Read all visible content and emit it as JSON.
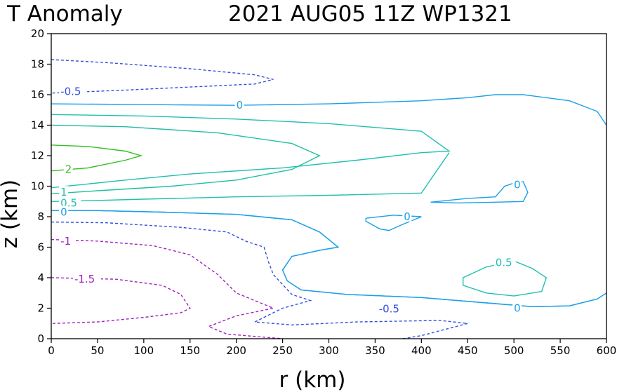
{
  "chart_data": {
    "type": "contour",
    "title_left": "T Anomaly",
    "title_right": "2021 AUG05 11Z   WP1321",
    "xlabel": "r (km)",
    "ylabel": "z (km)",
    "xlim": [
      0,
      600
    ],
    "ylim": [
      0,
      20
    ],
    "xticks": [
      0,
      50,
      100,
      150,
      200,
      250,
      300,
      350,
      400,
      450,
      500,
      550,
      600
    ],
    "yticks": [
      0,
      2,
      4,
      6,
      8,
      10,
      12,
      14,
      16,
      18,
      20
    ],
    "colors": {
      "-1.5": "#a020c0",
      "-1": "#a020c0",
      "-0.5": "#3050e0",
      "0": "#1aa0e8",
      "0.5": "#20c0b0",
      "1": "#20c0a0",
      "2": "#30c020"
    },
    "contours": [
      {
        "level": -0.5,
        "dashed": true,
        "points": [
          [
            0,
            18.3
          ],
          [
            60,
            18.1
          ],
          [
            150,
            17.7
          ],
          [
            220,
            17.3
          ],
          [
            240,
            17.0
          ],
          [
            220,
            16.7
          ],
          [
            150,
            16.5
          ],
          [
            80,
            16.3
          ],
          [
            0,
            16.1
          ]
        ]
      },
      {
        "level": 0,
        "dashed": false,
        "points": [
          [
            0,
            15.4
          ],
          [
            100,
            15.35
          ],
          [
            200,
            15.3
          ],
          [
            300,
            15.4
          ],
          [
            400,
            15.6
          ],
          [
            450,
            15.8
          ],
          [
            480,
            16.0
          ],
          [
            510,
            16.0
          ],
          [
            560,
            15.6
          ],
          [
            590,
            14.9
          ],
          [
            600,
            14.0
          ]
        ]
      },
      {
        "level": 0.5,
        "dashed": false,
        "points": [
          [
            0,
            14.7
          ],
          [
            100,
            14.6
          ],
          [
            200,
            14.4
          ],
          [
            300,
            14.1
          ],
          [
            400,
            13.6
          ],
          [
            430,
            12.3
          ],
          [
            400,
            12.2
          ],
          [
            330,
            11.7
          ],
          [
            250,
            11.2
          ],
          [
            150,
            10.8
          ],
          [
            80,
            10.4
          ],
          [
            0,
            9.9
          ]
        ]
      },
      {
        "level": 1,
        "dashed": false,
        "points": [
          [
            0,
            14.0
          ],
          [
            80,
            13.9
          ],
          [
            180,
            13.5
          ],
          [
            260,
            12.8
          ],
          [
            290,
            12.0
          ],
          [
            260,
            11.1
          ],
          [
            200,
            10.4
          ],
          [
            130,
            10.0
          ],
          [
            50,
            9.7
          ],
          [
            0,
            9.5
          ]
        ]
      },
      {
        "level": 2,
        "dashed": false,
        "points": [
          [
            0,
            12.7
          ],
          [
            40,
            12.6
          ],
          [
            80,
            12.3
          ],
          [
            97,
            12.0
          ],
          [
            80,
            11.7
          ],
          [
            40,
            11.2
          ],
          [
            0,
            11.0
          ]
        ]
      },
      {
        "level": 0.5,
        "dashed": false,
        "points": [
          [
            0,
            9.0
          ],
          [
            40,
            9.05
          ],
          [
            100,
            9.15
          ],
          [
            200,
            9.3
          ],
          [
            300,
            9.4
          ],
          [
            400,
            9.55
          ],
          [
            430,
            12.2
          ]
        ]
      },
      {
        "level": 0,
        "dashed": false,
        "points": [
          [
            0,
            8.4
          ],
          [
            50,
            8.4
          ],
          [
            120,
            8.3
          ],
          [
            200,
            8.15
          ],
          [
            260,
            7.8
          ],
          [
            290,
            7.0
          ],
          [
            310,
            6.0
          ],
          [
            290,
            5.8
          ],
          [
            260,
            5.4
          ],
          [
            250,
            4.5
          ],
          [
            255,
            3.8
          ],
          [
            270,
            3.2
          ],
          [
            320,
            2.9
          ],
          [
            400,
            2.7
          ],
          [
            480,
            2.3
          ],
          [
            520,
            2.1
          ],
          [
            560,
            2.15
          ],
          [
            590,
            2.6
          ],
          [
            600,
            3.0
          ]
        ]
      },
      {
        "level": 0,
        "dashed": false,
        "points": [
          [
            0,
            8.4
          ],
          [
            50,
            8.4
          ],
          [
            120,
            8.3
          ],
          [
            200,
            8.15
          ],
          [
            260,
            7.8
          ],
          [
            290,
            7.0
          ],
          [
            310,
            6.0
          ],
          [
            290,
            5.8
          ],
          [
            260,
            5.4
          ],
          [
            250,
            4.5
          ],
          [
            255,
            3.8
          ],
          [
            270,
            3.2
          ],
          [
            320,
            2.9
          ],
          [
            400,
            2.7
          ],
          [
            480,
            2.3
          ],
          [
            520,
            2.1
          ],
          [
            560,
            2.15
          ],
          [
            590,
            2.6
          ],
          [
            600,
            3.0
          ]
        ]
      },
      {
        "level": 0,
        "dashed": false,
        "points": [
          [
            340,
            7.9
          ],
          [
            370,
            8.1
          ],
          [
            400,
            8.0
          ],
          [
            380,
            7.5
          ],
          [
            365,
            7.1
          ],
          [
            355,
            7.2
          ],
          [
            340,
            7.7
          ],
          [
            340,
            7.9
          ]
        ]
      },
      {
        "level": 0,
        "dashed": false,
        "points": [
          [
            410,
            8.95
          ],
          [
            450,
            9.2
          ],
          [
            480,
            9.3
          ],
          [
            490,
            10.0
          ],
          [
            500,
            10.2
          ],
          [
            510,
            10.3
          ],
          [
            515,
            9.6
          ],
          [
            510,
            9.0
          ],
          [
            480,
            8.95
          ],
          [
            440,
            8.9
          ],
          [
            410,
            8.95
          ]
        ]
      },
      {
        "level": 0.5,
        "dashed": false,
        "points": [
          [
            470,
            4.7
          ],
          [
            500,
            5.1
          ],
          [
            520,
            4.6
          ],
          [
            535,
            4.0
          ],
          [
            530,
            3.1
          ],
          [
            500,
            2.8
          ],
          [
            470,
            3.0
          ],
          [
            445,
            3.5
          ],
          [
            445,
            4.0
          ],
          [
            470,
            4.7
          ]
        ]
      },
      {
        "level": -0.5,
        "dashed": true,
        "points": [
          [
            0,
            7.65
          ],
          [
            60,
            7.6
          ],
          [
            140,
            7.3
          ],
          [
            190,
            7.0
          ],
          [
            210,
            6.4
          ],
          [
            230,
            6.0
          ],
          [
            235,
            5.0
          ],
          [
            240,
            4.2
          ],
          [
            260,
            2.9
          ],
          [
            280,
            2.5
          ],
          [
            250,
            2.0
          ],
          [
            220,
            1.1
          ],
          [
            260,
            0.9
          ],
          [
            330,
            1.1
          ],
          [
            420,
            1.2
          ],
          [
            450,
            1.0
          ],
          [
            400,
            0.2
          ],
          [
            380,
            0.0
          ]
        ]
      },
      {
        "level": -1,
        "dashed": true,
        "points": [
          [
            0,
            6.5
          ],
          [
            50,
            6.4
          ],
          [
            110,
            6.1
          ],
          [
            150,
            5.5
          ],
          [
            180,
            4.2
          ],
          [
            200,
            3.0
          ],
          [
            240,
            2.0
          ],
          [
            200,
            1.5
          ],
          [
            170,
            0.8
          ],
          [
            190,
            0.3
          ],
          [
            230,
            0.1
          ],
          [
            250,
            0.0
          ]
        ]
      },
      {
        "level": -1.5,
        "dashed": true,
        "points": [
          [
            0,
            4.0
          ],
          [
            70,
            3.9
          ],
          [
            120,
            3.5
          ],
          [
            140,
            2.9
          ],
          [
            150,
            2.0
          ],
          [
            140,
            1.7
          ],
          [
            100,
            1.4
          ],
          [
            50,
            1.1
          ],
          [
            0,
            1.0
          ]
        ]
      }
    ],
    "contour_labels": [
      {
        "text": "-0.5",
        "x": 10,
        "y": 16.2,
        "level": -0.5
      },
      {
        "text": "0",
        "x": 200,
        "y": 15.3,
        "level": 0
      },
      {
        "text": "2",
        "x": 15,
        "y": 11.1,
        "level": 2
      },
      {
        "text": "1",
        "x": 10,
        "y": 9.6,
        "level": 1
      },
      {
        "text": "0.5",
        "x": 10,
        "y": 8.9,
        "level": 0.5
      },
      {
        "text": "0",
        "x": 10,
        "y": 8.3,
        "level": 0
      },
      {
        "text": "-1",
        "x": 10,
        "y": 6.4,
        "level": -1
      },
      {
        "text": "-1.5",
        "x": 25,
        "y": 3.9,
        "level": -1.5
      },
      {
        "text": "0",
        "x": 381,
        "y": 8.0,
        "level": 0
      },
      {
        "text": "0",
        "x": 500,
        "y": 10.1,
        "level": 0
      },
      {
        "text": "0.5",
        "x": 480,
        "y": 5.0,
        "level": 0.5
      },
      {
        "text": "-0.5",
        "x": 354,
        "y": 1.95,
        "level": -0.5
      },
      {
        "text": "0",
        "x": 500,
        "y": 2.0,
        "level": 0
      }
    ]
  }
}
